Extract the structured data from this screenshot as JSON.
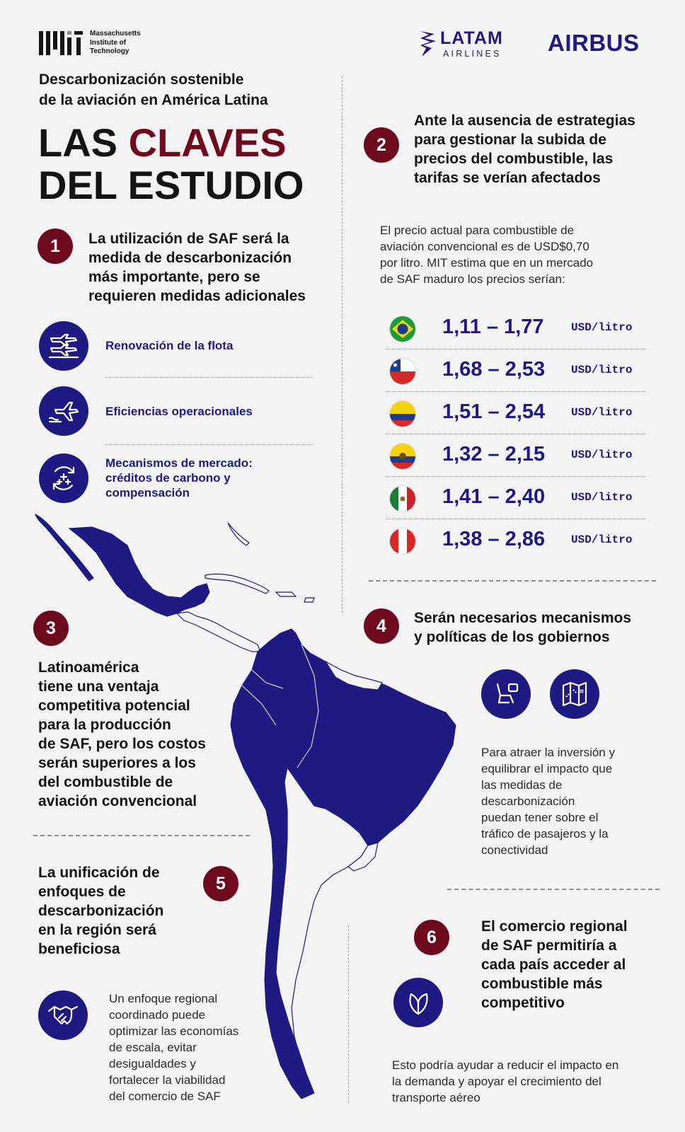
{
  "header": {
    "mit_logo_text": "MIT",
    "mit_name_1": "Massachusetts",
    "mit_name_2": "Institute of",
    "mit_name_3": "Technology",
    "latam_1": "LATAM",
    "latam_2": "AIRLINES",
    "airbus": "AIRBUS"
  },
  "title": {
    "subtitle_1": "Descarbonización sostenible",
    "subtitle_2": "de la aviación en América Latina",
    "main_las": "LAS ",
    "main_claves": "CLAVES",
    "main_line2": "DEL ESTUDIO"
  },
  "section1": {
    "number": "1",
    "heading": [
      "La utilización de SAF será la",
      "medida de descarbonización",
      "más importante, pero se",
      "requieren medidas adicionales"
    ],
    "levers": [
      {
        "label": [
          "Renovación de la flota"
        ],
        "icon": "fleet-renewal-icon"
      },
      {
        "label": [
          "Eficiencias operacionales"
        ],
        "icon": "operational-efficiency-icon"
      },
      {
        "label": [
          "Mecanismos de mercado:",
          "créditos de carbono y",
          "compensación"
        ],
        "icon": "market-mechanisms-icon"
      }
    ]
  },
  "section2": {
    "number": "2",
    "heading": [
      "Ante la ausencia de estrategias",
      "para gestionar la subida de",
      "precios del combustible, las",
      "tarifas se verían afectados"
    ],
    "body": [
      "El precio actual para combustible de",
      "aviación convencional es de USD$0,70",
      "por litro. MIT estima que en un mercado",
      "de SAF maduro los precios serían:"
    ],
    "prices": [
      {
        "flag": "brazil-flag",
        "range": "1,11 – 1,77",
        "unit": "USD/litro"
      },
      {
        "flag": "chile-flag",
        "range": "1,68 – 2,53",
        "unit": "USD/litro"
      },
      {
        "flag": "colombia-flag",
        "range": "1,51 – 2,54",
        "unit": "USD/litro"
      },
      {
        "flag": "ecuador-flag",
        "range": "1,32 – 2,15",
        "unit": "USD/litro"
      },
      {
        "flag": "mexico-flag",
        "range": "1,41 – 2,40",
        "unit": "USD/litro"
      },
      {
        "flag": "peru-flag",
        "range": "1,38 – 2,86",
        "unit": "USD/litro"
      }
    ]
  },
  "section3": {
    "number": "3",
    "heading": [
      "Latinoamérica",
      "tiene una ventaja",
      "competitiva potencial",
      "para la producción",
      "de SAF, pero los costos",
      "serán superiores a los",
      "del combustible de",
      "aviación convencional"
    ]
  },
  "section4": {
    "number": "4",
    "heading": [
      "Serán necesarios mecanismos",
      "y políticas de los gobiernos"
    ],
    "body": [
      "Para atraer la inversión y",
      "equilibrar el impacto que",
      "las medidas de",
      "descarbonización",
      "puedan tener sobre el",
      "tráfico de pasajeros y la",
      "conectividad"
    ]
  },
  "section5": {
    "number": "5",
    "heading": [
      "La unificación de",
      "enfoques de",
      "descarbonización",
      "en la región será",
      "beneficiosa"
    ],
    "body": [
      "Un enfoque regional",
      "coordinado puede",
      "optimizar las economías",
      "de escala, evitar",
      "desigualdades y",
      "fortalecer la viabilidad",
      "del comercio de SAF"
    ]
  },
  "section6": {
    "number": "6",
    "heading": [
      "El comercio regional",
      "de SAF permitiría a",
      "cada país acceder al",
      "combustible más",
      "competitivo"
    ],
    "body": [
      "Esto podría ayudar a reducir el impacto en",
      "la demanda y apoyar el crecimiento del",
      "transporte aéreo"
    ]
  },
  "colors": {
    "navy": "#1e1a82",
    "burgundy": "#6e0a1e",
    "map_fill": "#1e1a82",
    "background": "#f3f3f4"
  }
}
